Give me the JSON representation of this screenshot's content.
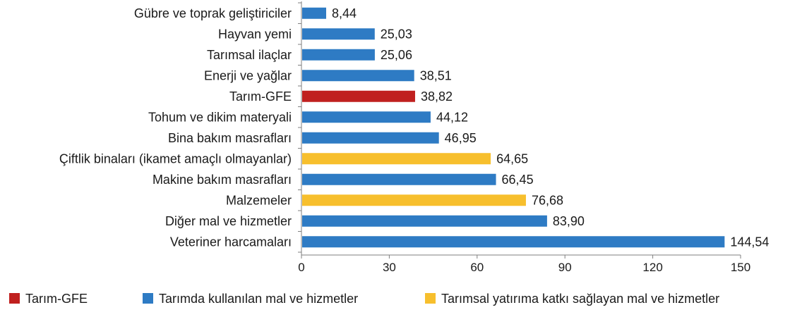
{
  "chart_data": {
    "type": "bar",
    "orientation": "horizontal",
    "title": "",
    "xlabel": "",
    "ylabel": "",
    "xlim": [
      0,
      150
    ],
    "ticks": [
      0,
      30,
      60,
      90,
      120,
      150
    ],
    "tick_labels": [
      "0",
      "30",
      "60",
      "90",
      "120",
      "150"
    ],
    "grid": false,
    "legend_position": "bottom",
    "categories": [
      "Gübre ve toprak geliştiriciler",
      "Hayvan yemi",
      "Tarımsal ilaçlar",
      "Enerji ve yağlar",
      "Tarım-GFE",
      "Tohum ve dikim materyali",
      "Bina bakım masrafları",
      "Çiftlik binaları (ikamet amaçlı olmayanlar)",
      "Makine bakım masrafları",
      "Malzemeler",
      "Diğer mal ve hizmetler",
      "Veteriner harcamaları"
    ],
    "values": [
      8.44,
      25.03,
      25.06,
      38.51,
      38.82,
      44.12,
      46.95,
      64.65,
      66.45,
      76.68,
      83.9,
      144.54
    ],
    "value_labels": [
      "8,44",
      "25,03",
      "25,06",
      "38,51",
      "38,82",
      "44,12",
      "46,95",
      "64,65",
      "66,45",
      "76,68",
      "83,90",
      "144,54"
    ],
    "groups": [
      "mal",
      "mal",
      "mal",
      "mal",
      "gfe",
      "mal",
      "mal",
      "yatirim",
      "mal",
      "yatirim",
      "mal",
      "mal"
    ],
    "legend": [
      {
        "key": "gfe",
        "label": "Tarım-GFE",
        "color": "#C0201F"
      },
      {
        "key": "mal",
        "label": "Tarımda kullanılan mal ve hizmetler",
        "color": "#2E7BC4"
      },
      {
        "key": "yatirim",
        "label": "Tarımsal yatırıma katkı sağlayan mal ve hizmetler",
        "color": "#F7BF2D"
      }
    ],
    "axis_color": "#7f7f7f"
  }
}
